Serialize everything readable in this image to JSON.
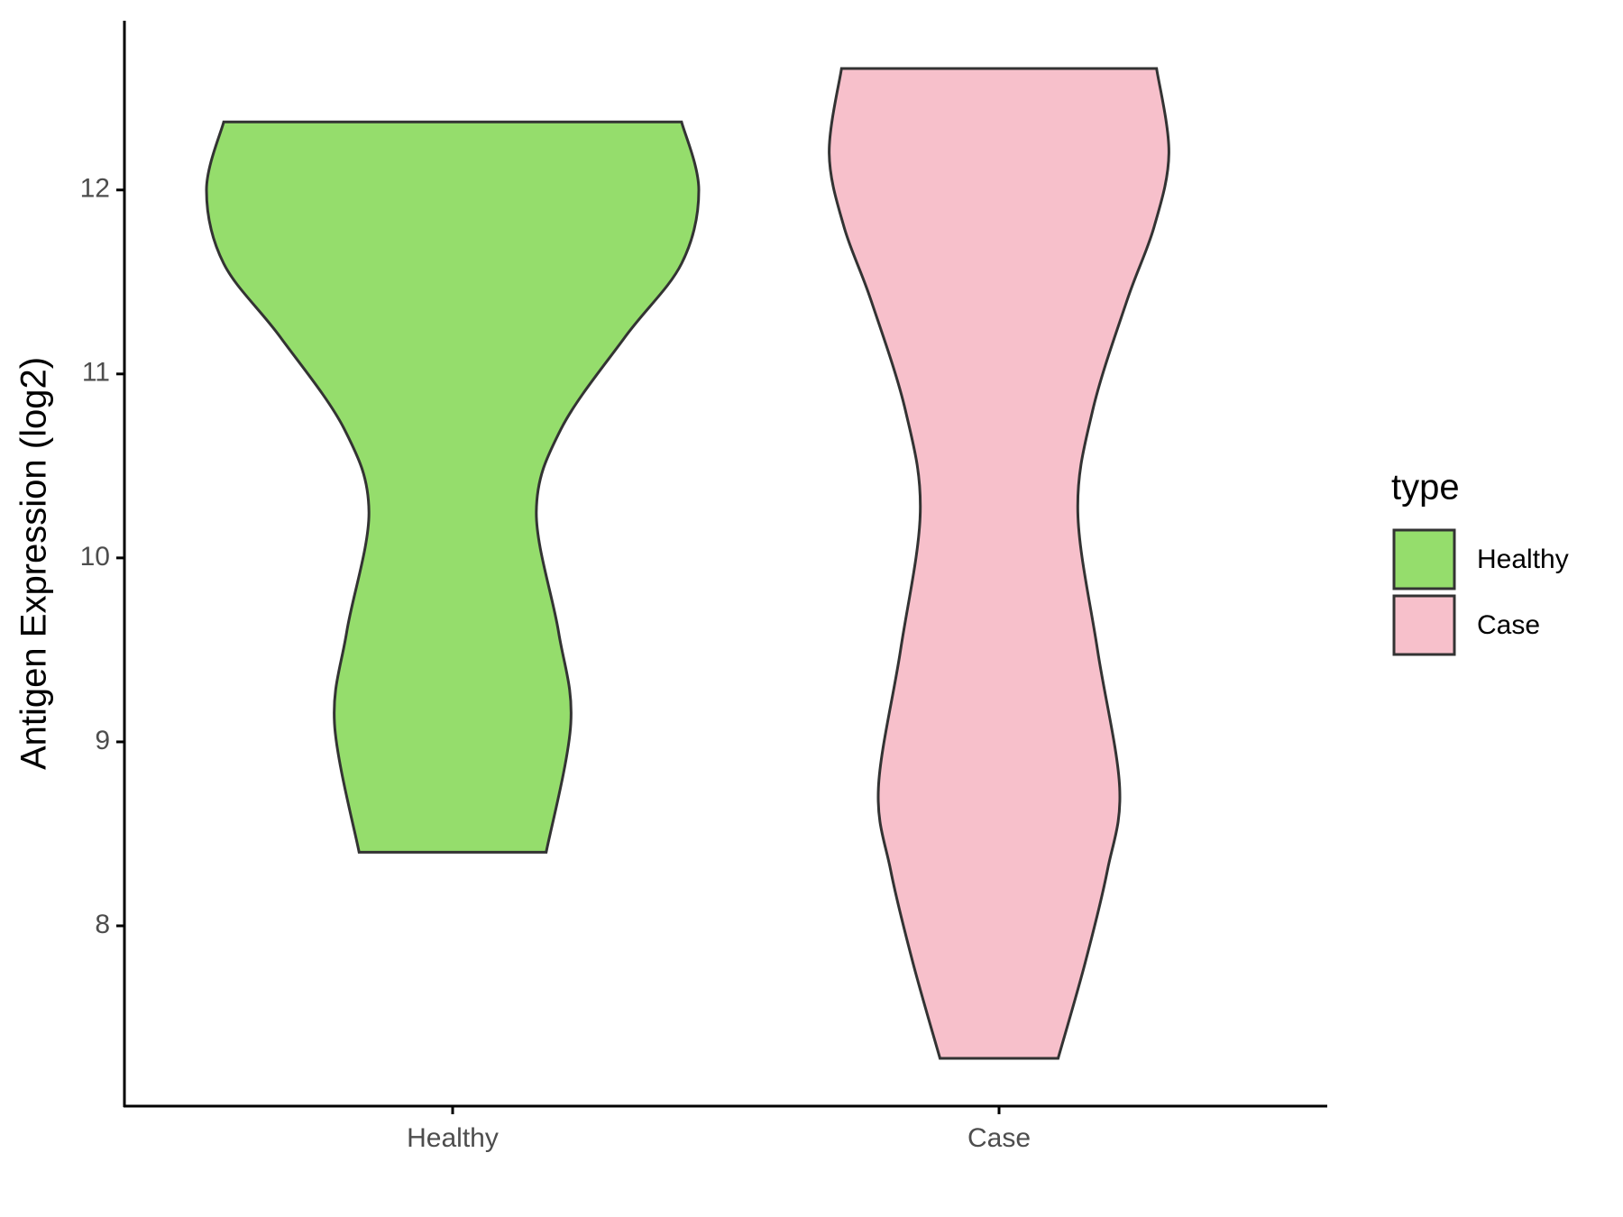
{
  "chart_data": {
    "type": "violin",
    "y_axis_label": "Antigen Expression (log2)",
    "categories": [
      "Healthy",
      "Case"
    ],
    "legend_title": "type",
    "legend_position": "right",
    "ylim": [
      7.02,
      12.92
    ],
    "yticks": [
      8,
      9,
      10,
      11,
      12
    ],
    "series": [
      {
        "name": "Healthy",
        "color": "#95dd6c",
        "y": [
          8.4,
          9.1,
          9.6,
          10.25,
          10.7,
          11.2,
          11.6,
          12.0,
          12.37
        ],
        "width": [
          0.38,
          0.48,
          0.43,
          0.34,
          0.44,
          0.7,
          0.93,
          1.0,
          0.93
        ]
      },
      {
        "name": "Case",
        "color": "#f7c0cb",
        "y": [
          7.28,
          7.8,
          8.3,
          8.75,
          9.5,
          10.25,
          10.8,
          11.4,
          11.8,
          12.2,
          12.66
        ],
        "width": [
          0.24,
          0.35,
          0.44,
          0.49,
          0.4,
          0.32,
          0.38,
          0.52,
          0.63,
          0.69,
          0.64
        ]
      }
    ]
  }
}
